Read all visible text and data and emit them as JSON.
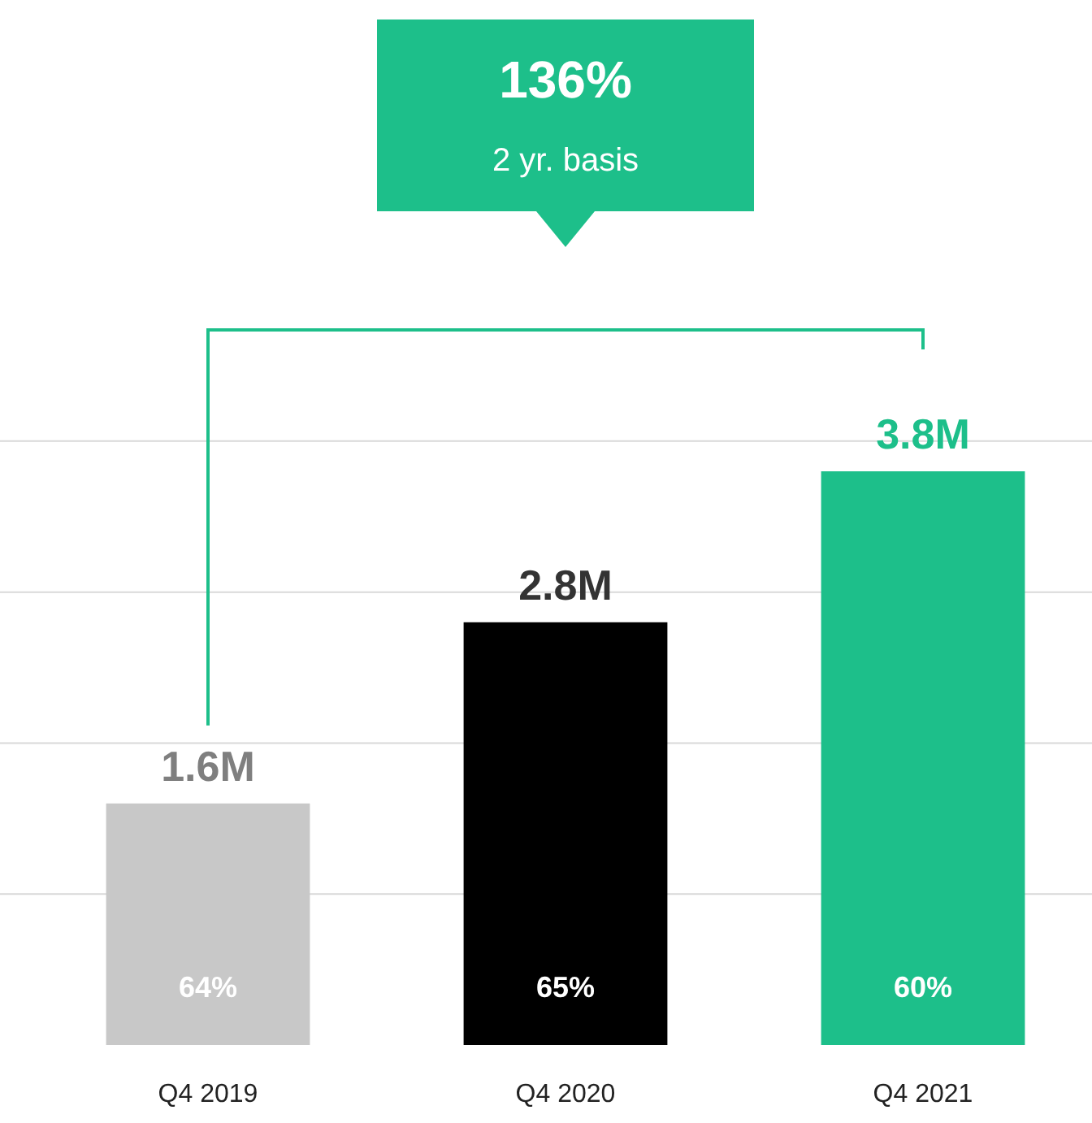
{
  "chart_data": {
    "type": "bar",
    "categories": [
      "Q4 2019",
      "Q4 2020",
      "Q4 2021"
    ],
    "values": [
      1.6,
      2.8,
      3.8
    ],
    "colors": [
      "#c8c8c8",
      "#000000",
      "#1dbf8a"
    ],
    "value_labels": [
      "1.6M",
      "2.8M",
      "3.8M"
    ],
    "yticks": [
      {
        "value": 1,
        "label": null
      },
      {
        "value": 2,
        "label": null
      },
      {
        "value": 3,
        "label": null
      },
      {
        "value": 4,
        "label": null
      }
    ],
    "grid": "y",
    "tick_labels": "x",
    "annotations": [
      "136%",
      "2 yr. basis",
      "64%",
      "65%",
      "60%"
    ]
  }
}
